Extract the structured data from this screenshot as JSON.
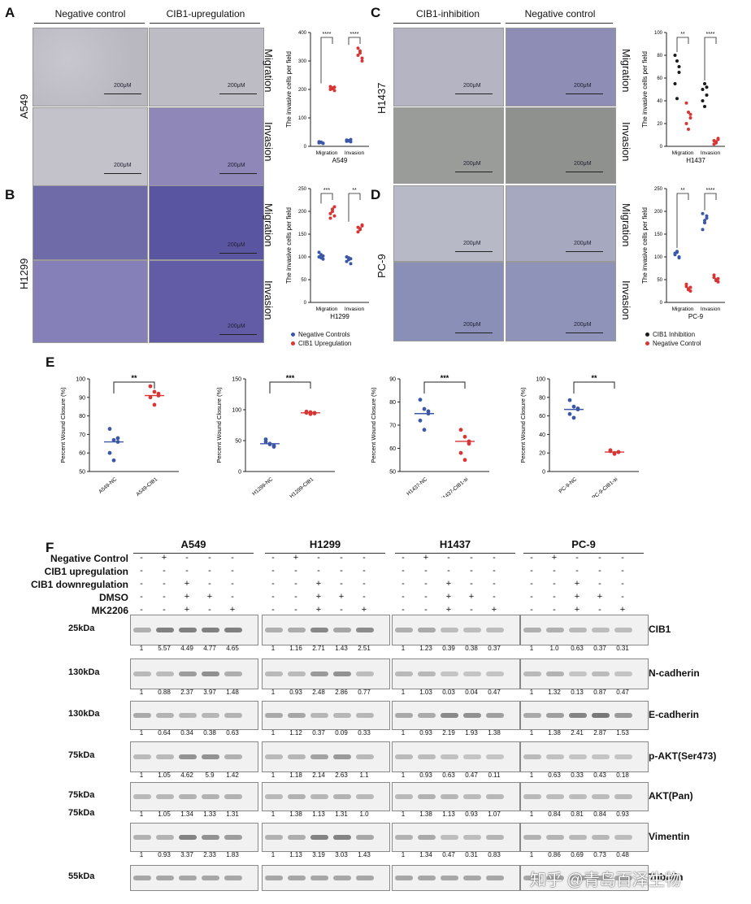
{
  "panels": {
    "A": "A",
    "B": "B",
    "C": "C",
    "D": "D",
    "E": "E",
    "F": "F"
  },
  "micro_headers": {
    "left_col1": "Negative control",
    "left_col2": "CIB1-upregulation",
    "right_col1": "CIB1-inhibition",
    "right_col2": "Negative control"
  },
  "row_labels": {
    "A": "A549",
    "B": "H1299",
    "C": "H1437",
    "D": "PC-9"
  },
  "assay_labels": {
    "migration": "Migration",
    "invasion": "Invasion"
  },
  "scale_bar": "200μM",
  "scatter_common": {
    "ylabel": "The invasive cells per field",
    "x_categories": [
      "Migration",
      "Invasion"
    ]
  },
  "scatter_titles": {
    "A": "A549",
    "B": "H1299",
    "C": "H1437",
    "D": "PC-9"
  },
  "legend_left": {
    "item1": "Negative Controls",
    "item2": "CIB1 Upregulation",
    "color1": "#3a57a8",
    "color2": "#d93535"
  },
  "legend_right": {
    "item1": "CIB1 Inhibition",
    "item2": "Negative Control",
    "color1": "#1a1a1a",
    "color2": "#d93535"
  },
  "wound": {
    "ylabel": "Percent Wound Closure (%)"
  },
  "chart_data": [
    {
      "type": "scatter",
      "panel": "A",
      "title": "A549",
      "ylabel": "The invasive cells per field",
      "categories": [
        "Migration",
        "Invasion"
      ],
      "ylim": [
        0,
        400
      ],
      "yticks": [
        0,
        100,
        200,
        300,
        400
      ],
      "series": [
        {
          "name": "Negative Controls",
          "color": "#3a57a8",
          "values": [
            [
              12,
              14,
              10,
              16,
              15,
              11
            ],
            [
              18,
              20,
              16,
              22,
              19,
              24
            ]
          ]
        },
        {
          "name": "CIB1 Upregulation",
          "color": "#d93535",
          "values": [
            [
              200,
              205,
              196,
              210,
              203,
              208
            ],
            [
              320,
              335,
              310,
              345,
              328,
              300
            ]
          ]
        }
      ],
      "significance": [
        "****",
        "****"
      ]
    },
    {
      "type": "scatter",
      "panel": "B",
      "title": "H1299",
      "ylabel": "The invasive cells per field",
      "categories": [
        "Migration",
        "Invasion"
      ],
      "ylim": [
        0,
        250
      ],
      "yticks": [
        0,
        50,
        100,
        150,
        200,
        250
      ],
      "series": [
        {
          "name": "Negative Controls",
          "color": "#3a57a8",
          "values": [
            [
              100,
              105,
              95,
              110,
              98,
              102
            ],
            [
              90,
              98,
              85,
              100,
              94,
              96
            ]
          ]
        },
        {
          "name": "CIB1 Upregulation",
          "color": "#d93535",
          "values": [
            [
              195,
              200,
              210,
              185,
              205,
              190
            ],
            [
              165,
              160,
              170,
              155,
              162,
              168
            ]
          ]
        }
      ],
      "significance": [
        "***",
        "**"
      ]
    },
    {
      "type": "scatter",
      "panel": "C",
      "title": "H1437",
      "ylabel": "The invasive cells per field",
      "categories": [
        "Migration",
        "Invasion"
      ],
      "ylim": [
        0,
        100
      ],
      "yticks": [
        0,
        20,
        40,
        60,
        80,
        100
      ],
      "series": [
        {
          "name": "CIB1 Inhibition",
          "color": "#1a1a1a",
          "values": [
            [
              80,
              75,
              65,
              55,
              42,
              70
            ],
            [
              50,
              55,
              45,
              40,
              35,
              52
            ]
          ]
        },
        {
          "name": "Negative Control",
          "color": "#d93535",
          "values": [
            [
              38,
              30,
              25,
              20,
              15,
              28
            ],
            [
              5,
              3,
              6,
              2,
              4,
              7
            ]
          ]
        }
      ],
      "significance": [
        "**",
        "****"
      ]
    },
    {
      "type": "scatter",
      "panel": "D",
      "title": "PC-9",
      "ylabel": "The invasive cells per field",
      "categories": [
        "Migration",
        "Invasion"
      ],
      "ylim": [
        0,
        250
      ],
      "yticks": [
        0,
        50,
        100,
        150,
        200,
        250
      ],
      "series": [
        {
          "name": "CIB1 Inhibition",
          "color": "#3a57a8",
          "values": [
            [
              105,
              110,
              100,
              108,
              112,
              98
            ],
            [
              195,
              180,
              190,
              160,
              175,
              185
            ]
          ]
        },
        {
          "name": "Negative Control",
          "color": "#d93535",
          "values": [
            [
              35,
              30,
              25,
              40,
              28,
              33
            ],
            [
              55,
              50,
              45,
              60,
              48,
              52
            ]
          ]
        }
      ],
      "significance": [
        "**",
        "****"
      ]
    },
    {
      "type": "scatter",
      "panel": "E1",
      "ylabel": "Percent Wound Closure (%)",
      "categories": [
        "A549-NC",
        "A549-CIB1"
      ],
      "ylim": [
        50,
        100
      ],
      "yticks": [
        50,
        60,
        70,
        80,
        90,
        100
      ],
      "groups": [
        {
          "color": "#3a57a8",
          "values": [
            73,
            67,
            68,
            60,
            56,
            66
          ],
          "mean": 66
        },
        {
          "color": "#d93535",
          "values": [
            96,
            93,
            92,
            90,
            86,
            91
          ],
          "mean": 91
        }
      ],
      "significance": "**"
    },
    {
      "type": "scatter",
      "panel": "E2",
      "ylabel": "Percent Wound Closure (%)",
      "categories": [
        "H1299-NC",
        "H1299-CIB1"
      ],
      "ylim": [
        0,
        150
      ],
      "yticks": [
        0,
        50,
        100,
        150
      ],
      "groups": [
        {
          "color": "#3a57a8",
          "values": [
            48,
            45,
            40,
            52,
            44,
            42
          ],
          "mean": 45
        },
        {
          "color": "#d93535",
          "values": [
            95,
            96,
            94,
            97,
            93,
            95
          ],
          "mean": 95
        }
      ],
      "significance": "***"
    },
    {
      "type": "scatter",
      "panel": "E3",
      "ylabel": "Percent Wound Closure (%)",
      "categories": [
        "H1437-NC",
        "H1437-CIB1-si"
      ],
      "ylim": [
        50,
        90
      ],
      "yticks": [
        50,
        60,
        70,
        80,
        90
      ],
      "groups": [
        {
          "color": "#3a57a8",
          "values": [
            81,
            77,
            76,
            72,
            68,
            75
          ],
          "mean": 75
        },
        {
          "color": "#d93535",
          "values": [
            68,
            65,
            62,
            58,
            55,
            63
          ],
          "mean": 63
        }
      ],
      "significance": "***"
    },
    {
      "type": "scatter",
      "panel": "E4",
      "ylabel": "Percent Wound Closure (%)",
      "categories": [
        "PC-9-NC",
        "PC-9-CIB1-si"
      ],
      "ylim": [
        0,
        100
      ],
      "yticks": [
        0,
        20,
        40,
        60,
        80,
        100
      ],
      "groups": [
        {
          "color": "#3a57a8",
          "values": [
            77,
            70,
            68,
            62,
            58,
            67
          ],
          "mean": 67
        },
        {
          "color": "#d93535",
          "values": [
            22,
            20,
            21,
            23,
            19,
            21
          ],
          "mean": 21
        }
      ],
      "significance": "**"
    }
  ],
  "western": {
    "cell_lines": [
      "A549",
      "H1299",
      "H1437",
      "PC-9"
    ],
    "conditions": [
      "Negative Control",
      "CIB1 upregulation",
      "CIB1 downregulation",
      "DMSO",
      "MK2206"
    ],
    "signs": {
      "A549": [
        [
          "-",
          "+",
          "-",
          "-",
          "-"
        ],
        [
          "-",
          "-",
          "-",
          "-",
          "-"
        ],
        [
          "-",
          "-",
          "+",
          "-",
          "-"
        ],
        [
          "-",
          "-",
          "+",
          "+",
          "-"
        ],
        [
          "-",
          "-",
          "+",
          "-",
          "+"
        ]
      ],
      "H1299": [
        [
          "-",
          "+",
          "-",
          "-",
          "-"
        ],
        [
          "-",
          "-",
          "-",
          "-",
          "-"
        ],
        [
          "-",
          "-",
          "+",
          "-",
          "-"
        ],
        [
          "-",
          "-",
          "+",
          "+",
          "-"
        ],
        [
          "-",
          "-",
          "+",
          "-",
          "+"
        ]
      ],
      "H1437": [
        [
          "-",
          "+",
          "-",
          "-",
          "-"
        ],
        [
          "-",
          "-",
          "-",
          "-",
          "-"
        ],
        [
          "-",
          "-",
          "+",
          "-",
          "-"
        ],
        [
          "-",
          "-",
          "+",
          "+",
          "-"
        ],
        [
          "-",
          "-",
          "+",
          "-",
          "+"
        ]
      ],
      "PC-9": [
        [
          "-",
          "+",
          "-",
          "-",
          "-"
        ],
        [
          "-",
          "-",
          "-",
          "-",
          "-"
        ],
        [
          "-",
          "-",
          "+",
          "-",
          "-"
        ],
        [
          "-",
          "-",
          "+",
          "+",
          "-"
        ],
        [
          "-",
          "-",
          "+",
          "-",
          "+"
        ]
      ]
    },
    "rows": [
      {
        "kda": "25kDa",
        "protein": "CIB1",
        "values": [
          [
            "1",
            "5.57",
            "4.49",
            "4.77",
            "4.65"
          ],
          [
            "1",
            "1.16",
            "2.71",
            "1.43",
            "2.51"
          ],
          [
            "1",
            "1.23",
            "0.39",
            "0.38",
            "0.37"
          ],
          [
            "1",
            "1.0",
            "0.63",
            "0.37",
            "0.31"
          ]
        ]
      },
      {
        "kda": "130kDa",
        "protein": "N-cadherin",
        "values": [
          [
            "1",
            "0.88",
            "2.37",
            "3.97",
            "1.48"
          ],
          [
            "1",
            "0.93",
            "2.48",
            "2.86",
            "0.77"
          ],
          [
            "1",
            "1.03",
            "0.03",
            "0.04",
            "0.47"
          ],
          [
            "1",
            "1.32",
            "0.13",
            "0.87",
            "0.47"
          ]
        ]
      },
      {
        "kda": "130kDa",
        "protein": "E-cadherin",
        "values": [
          [
            "1",
            "0.64",
            "0.34",
            "0.38",
            "0.63"
          ],
          [
            "1",
            "1.12",
            "0.37",
            "0.09",
            "0.33"
          ],
          [
            "1",
            "0.93",
            "2.19",
            "1.93",
            "1.38"
          ],
          [
            "1",
            "1.38",
            "2.41",
            "2.87",
            "1.53"
          ]
        ]
      },
      {
        "kda": "75kDa",
        "protein": "p-AKT(Ser473)",
        "values": [
          [
            "1",
            "1.05",
            "4.62",
            "5.9",
            "1.42"
          ],
          [
            "1",
            "1.18",
            "2.14",
            "2.63",
            "1.1"
          ],
          [
            "1",
            "0.93",
            "0.63",
            "0.47",
            "0.11"
          ],
          [
            "1",
            "0.63",
            "0.33",
            "0.43",
            "0.18"
          ]
        ]
      },
      {
        "kda": "75kDa",
        "protein": "AKT(Pan)",
        "values": [
          [
            "1",
            "1.05",
            "1.34",
            "1.33",
            "1.31"
          ],
          [
            "1",
            "1.38",
            "1.13",
            "1.31",
            "1.0"
          ],
          [
            "1",
            "1.38",
            "1.13",
            "0.93",
            "1.07"
          ],
          [
            "1",
            "0.84",
            "0.81",
            "0.84",
            "0.93"
          ]
        ]
      },
      {
        "kda": "",
        "protein": "Vimentin",
        "values": [
          [
            "1",
            "0.93",
            "3.37",
            "2.33",
            "1.83"
          ],
          [
            "1",
            "1.13",
            "3.19",
            "3.03",
            "1.43"
          ],
          [
            "1",
            "1.34",
            "0.47",
            "0.31",
            "0.83"
          ],
          [
            "1",
            "0.86",
            "0.69",
            "0.73",
            "0.48"
          ]
        ]
      },
      {
        "kda": "55kDa",
        "protein": "Tubulin",
        "values": []
      }
    ],
    "extra_kda": "75kDa"
  },
  "watermark": "知乎 @青岛百泽生物"
}
